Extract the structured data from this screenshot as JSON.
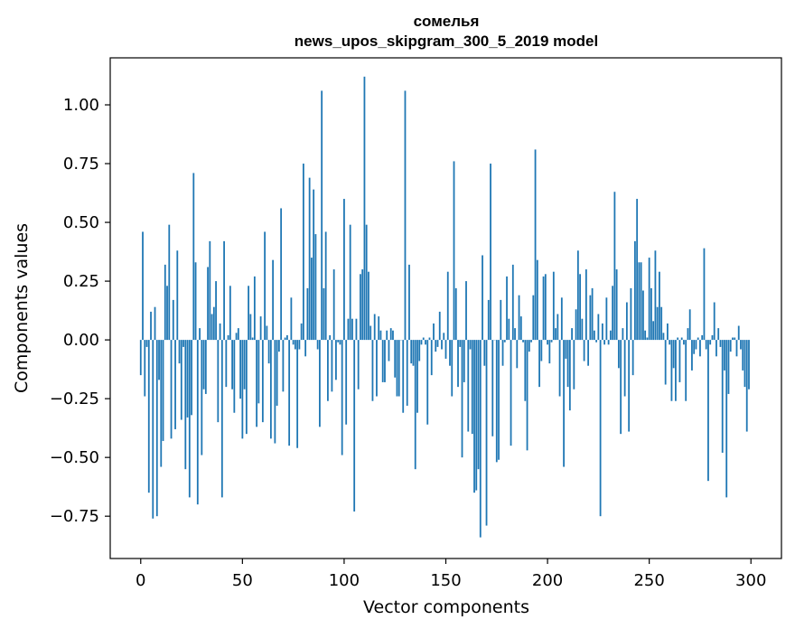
{
  "chart_data": {
    "type": "bar",
    "title_line1": "сомелья",
    "title_line2": "news_upos_skipgram_300_5_2019 model",
    "xlabel": "Vector components",
    "ylabel": "Components values",
    "xlim": [
      -15,
      315
    ],
    "ylim": [
      -0.93,
      1.2
    ],
    "xticks": [
      0,
      50,
      100,
      150,
      200,
      250,
      300
    ],
    "xtick_labels": [
      "0",
      "50",
      "100",
      "150",
      "200",
      "250",
      "300"
    ],
    "yticks": [
      -0.75,
      -0.5,
      -0.25,
      0.0,
      0.25,
      0.5,
      0.75,
      1.0
    ],
    "ytick_labels": [
      "−0.75",
      "−0.50",
      "−0.25",
      "0.00",
      "0.25",
      "0.50",
      "0.75",
      "1.00"
    ],
    "bar_color": "#1f77b4",
    "values": [
      -0.15,
      0.46,
      -0.24,
      -0.03,
      -0.65,
      0.12,
      -0.76,
      0.14,
      -0.75,
      -0.17,
      -0.54,
      -0.43,
      0.32,
      0.23,
      0.49,
      -0.42,
      0.17,
      -0.38,
      0.38,
      -0.1,
      -0.34,
      -0.03,
      -0.55,
      -0.33,
      -0.67,
      -0.32,
      0.71,
      0.33,
      -0.7,
      0.05,
      -0.49,
      -0.21,
      -0.23,
      0.31,
      0.42,
      0.11,
      0.14,
      0.25,
      -0.35,
      0.07,
      -0.67,
      0.42,
      -0.2,
      0.02,
      0.23,
      -0.21,
      -0.31,
      0.03,
      0.05,
      -0.25,
      -0.42,
      -0.21,
      -0.4,
      0.23,
      0.11,
      0.01,
      0.27,
      -0.37,
      -0.27,
      0.1,
      -0.35,
      0.46,
      0.06,
      -0.1,
      -0.42,
      0.34,
      -0.44,
      -0.28,
      -0.05,
      0.56,
      -0.22,
      0.01,
      0.02,
      -0.45,
      0.18,
      -0.02,
      -0.04,
      -0.46,
      -0.04,
      0.07,
      0.75,
      -0.07,
      0.22,
      0.69,
      0.35,
      0.64,
      0.45,
      -0.04,
      -0.37,
      1.06,
      0.22,
      0.46,
      -0.26,
      0.02,
      -0.22,
      0.3,
      -0.17,
      -0.01,
      -0.02,
      -0.49,
      0.6,
      -0.36,
      0.09,
      0.49,
      0.09,
      -0.73,
      0.09,
      -0.21,
      0.28,
      0.3,
      1.12,
      0.49,
      0.29,
      0.06,
      -0.26,
      0.11,
      -0.24,
      0.1,
      0.04,
      -0.18,
      -0.18,
      0.04,
      -0.09,
      0.05,
      0.04,
      -0.16,
      -0.24,
      -0.24,
      0.0,
      -0.31,
      1.06,
      -0.28,
      0.32,
      -0.1,
      -0.11,
      -0.55,
      -0.31,
      -0.09,
      -0.02,
      0.01,
      -0.02,
      -0.36,
      0.01,
      -0.15,
      0.07,
      -0.05,
      -0.03,
      0.12,
      -0.04,
      0.03,
      -0.08,
      0.29,
      -0.11,
      -0.24,
      0.76,
      0.22,
      -0.2,
      -0.03,
      -0.5,
      -0.18,
      0.25,
      -0.39,
      -0.04,
      -0.4,
      -0.65,
      -0.64,
      -0.55,
      -0.84,
      0.36,
      -0.11,
      -0.79,
      0.17,
      0.75,
      -0.41,
      0.0,
      -0.52,
      -0.51,
      0.17,
      -0.11,
      -0.01,
      0.27,
      0.09,
      -0.45,
      0.32,
      0.05,
      -0.12,
      0.19,
      0.1,
      -0.01,
      -0.26,
      -0.47,
      -0.05,
      -0.01,
      0.19,
      0.81,
      0.34,
      -0.2,
      -0.09,
      0.27,
      0.28,
      -0.02,
      -0.1,
      -0.01,
      0.29,
      0.05,
      0.11,
      -0.24,
      0.18,
      -0.54,
      -0.08,
      -0.2,
      -0.3,
      0.05,
      -0.21,
      0.13,
      0.38,
      0.28,
      0.09,
      -0.09,
      0.3,
      -0.11,
      0.19,
      0.22,
      0.04,
      -0.01,
      0.11,
      -0.75,
      0.07,
      -0.02,
      0.18,
      -0.02,
      0.04,
      0.23,
      0.63,
      0.3,
      -0.12,
      -0.4,
      0.05,
      -0.24,
      0.16,
      -0.39,
      0.22,
      -0.15,
      0.42,
      0.6,
      0.33,
      0.33,
      0.21,
      0.04,
      0.01,
      0.35,
      0.22,
      0.08,
      0.38,
      0.14,
      0.29,
      0.14,
      0.03,
      -0.19,
      0.07,
      -0.02,
      -0.26,
      -0.12,
      -0.26,
      0.01,
      -0.18,
      0.01,
      -0.02,
      -0.26,
      0.05,
      0.13,
      -0.13,
      -0.06,
      -0.04,
      0.01,
      -0.07,
      0.02,
      0.39,
      -0.04,
      -0.6,
      -0.02,
      0.02,
      0.16,
      -0.07,
      0.05,
      -0.03,
      -0.48,
      -0.13,
      -0.67,
      -0.23,
      -0.05,
      0.01,
      0.01,
      -0.07,
      0.06,
      -0.04,
      -0.13,
      -0.2,
      -0.39,
      -0.21
    ]
  }
}
